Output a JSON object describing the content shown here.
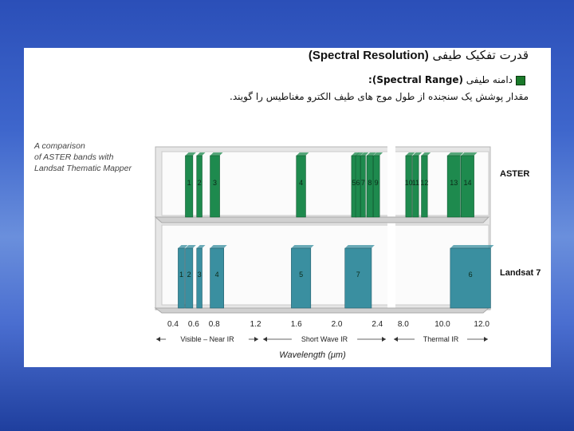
{
  "title": {
    "persian": "قدرت تفکیک طیفی",
    "english": "(Spectral Resolution)"
  },
  "bullet_line": {
    "persian": "دامنه طیفی",
    "english": "(Spectral Range):"
  },
  "definition": "مقدار پوشش یک سنجنده از طول موج های طیف الکترو مغناطیس را گویند.",
  "caption": [
    "A comparison",
    "of ASTER bands with",
    "Landsat Thematic Mapper"
  ],
  "colors": {
    "aster": "#1e8a4e",
    "landsat": "#3a8fa0",
    "shelf": "#c8c8c8"
  },
  "chart_data": {
    "type": "bar",
    "title": "",
    "xlabel": "Wavelength (μm)",
    "panels": [
      {
        "name": "Visible/Near IR",
        "label": "Visible – Near IR",
        "ticks": [
          "0.4",
          "0.6",
          "0.8",
          "1.2"
        ],
        "tick_values": [
          0.4,
          0.6,
          0.8,
          1.2
        ]
      },
      {
        "name": "Short Wave IR",
        "label": "Short Wave IR",
        "ticks": [
          "1.6",
          "2.0",
          "2.4"
        ],
        "tick_values": [
          1.6,
          2.0,
          2.4
        ]
      },
      {
        "name": "Thermal IR",
        "label": "Thermal IR",
        "ticks": [
          "8.0",
          "10.0",
          "12.0"
        ],
        "tick_values": [
          8.0,
          10.0,
          12.0
        ]
      }
    ],
    "series": [
      {
        "name": "ASTER",
        "bands": [
          {
            "label": "1",
            "panel": 0,
            "from": 0.52,
            "to": 0.6
          },
          {
            "label": "2",
            "panel": 0,
            "from": 0.63,
            "to": 0.69
          },
          {
            "label": "3",
            "panel": 0,
            "from": 0.76,
            "to": 0.86
          },
          {
            "label": "4",
            "panel": 1,
            "from": 1.6,
            "to": 1.7
          },
          {
            "label": "5",
            "panel": 1,
            "from": 2.145,
            "to": 2.185
          },
          {
            "label": "6",
            "panel": 1,
            "from": 2.185,
            "to": 2.225
          },
          {
            "label": "7",
            "panel": 1,
            "from": 2.235,
            "to": 2.285
          },
          {
            "label": "8",
            "panel": 1,
            "from": 2.295,
            "to": 2.365
          },
          {
            "label": "9",
            "panel": 1,
            "from": 2.36,
            "to": 2.43
          },
          {
            "label": "10",
            "panel": 2,
            "from": 8.125,
            "to": 8.475
          },
          {
            "label": "11",
            "panel": 2,
            "from": 8.475,
            "to": 8.825
          },
          {
            "label": "12",
            "panel": 2,
            "from": 8.925,
            "to": 9.275
          },
          {
            "label": "13",
            "panel": 2,
            "from": 10.25,
            "to": 10.95
          },
          {
            "label": "14",
            "panel": 2,
            "from": 10.95,
            "to": 11.65
          }
        ]
      },
      {
        "name": "Landsat 7",
        "bands": [
          {
            "label": "1",
            "panel": 0,
            "from": 0.45,
            "to": 0.52
          },
          {
            "label": "2",
            "panel": 0,
            "from": 0.52,
            "to": 0.6
          },
          {
            "label": "3",
            "panel": 0,
            "from": 0.63,
            "to": 0.69
          },
          {
            "label": "4",
            "panel": 0,
            "from": 0.76,
            "to": 0.9
          },
          {
            "label": "5",
            "panel": 1,
            "from": 1.55,
            "to": 1.75
          },
          {
            "label": "7",
            "panel": 1,
            "from": 2.08,
            "to": 2.35
          },
          {
            "label": "6",
            "panel": 2,
            "from": 10.4,
            "to": 12.5
          }
        ]
      }
    ]
  }
}
